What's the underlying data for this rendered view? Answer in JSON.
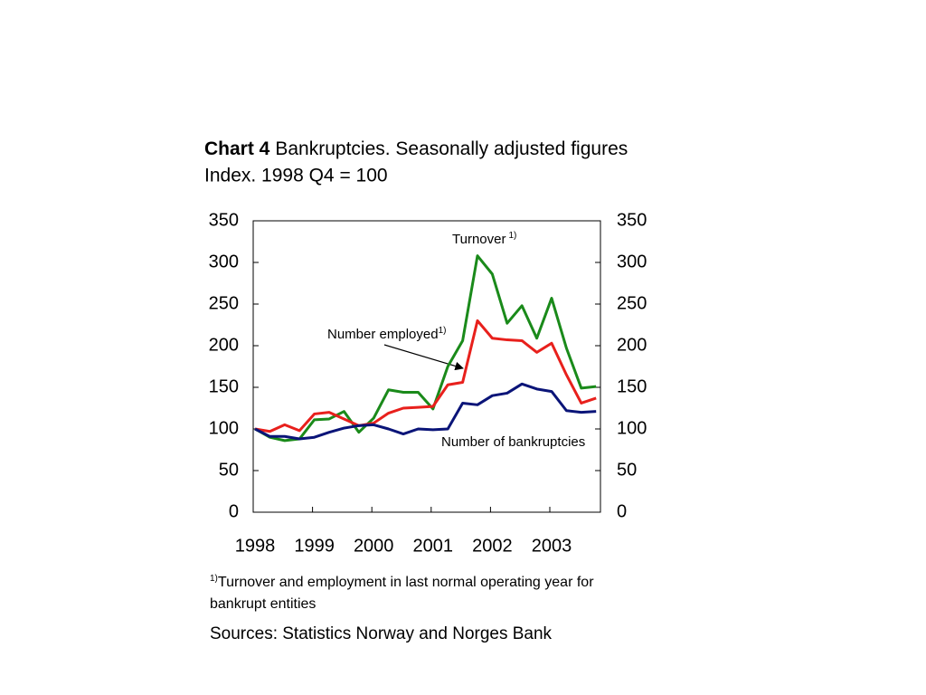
{
  "chart_data": {
    "type": "line",
    "title_bold": "Chart 4",
    "title": "Bankruptcies. Seasonally adjusted figures",
    "subtitle": "Index. 1998 Q4 = 100",
    "categories": [
      "1998",
      null,
      null,
      null,
      "1999",
      null,
      null,
      null,
      "2000",
      null,
      null,
      null,
      "2001",
      null,
      null,
      null,
      "2002",
      null,
      null,
      null,
      "2003",
      null,
      null,
      null
    ],
    "series": [
      {
        "name": "Turnover",
        "color": "#1a8a1a",
        "values": [
          100,
          90,
          86,
          88,
          111,
          112,
          121,
          96,
          113,
          147,
          144,
          144,
          124,
          175,
          206,
          308,
          286,
          227,
          248,
          209,
          257,
          197,
          149,
          151
        ]
      },
      {
        "name": "Number employed",
        "color": "#e8201c",
        "values": [
          100,
          97,
          105,
          98,
          118,
          120,
          112,
          104,
          107,
          119,
          125,
          126,
          127,
          153,
          156,
          230,
          209,
          207,
          206,
          192,
          203,
          165,
          131,
          137
        ]
      },
      {
        "name": "Number of bankruptcies",
        "color": "#0a1478",
        "values": [
          100,
          91,
          91,
          88,
          90,
          96,
          101,
          104,
          105,
          100,
          94,
          100,
          99,
          100,
          131,
          129,
          140,
          143,
          154,
          148,
          145,
          122,
          120,
          121
        ]
      }
    ],
    "footnote_marker": "1)",
    "ylim": [
      0,
      350
    ],
    "yticks": [
      0,
      50,
      100,
      150,
      200,
      250,
      300,
      350
    ],
    "y2lim": [
      0,
      350
    ],
    "y2ticks": [
      0,
      50,
      100,
      150,
      200,
      250,
      300,
      350
    ],
    "footnote": "Turnover and employment in last normal operating year for",
    "footnote_line2": "bankrupt entities",
    "source": "Sources: Statistics Norway and Norges Bank"
  }
}
